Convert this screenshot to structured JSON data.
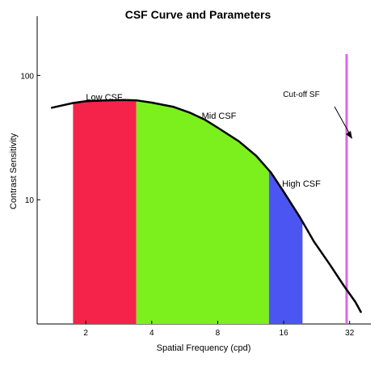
{
  "chart_data": {
    "type": "area",
    "title": "CSF Curve and Parameters",
    "xlabel": "Spatial Frequency (cpd)",
    "ylabel": "Contrast Sensitivity",
    "x_scale": "log",
    "y_scale": "log",
    "xlim": [
      1.2,
      40
    ],
    "ylim": [
      1,
      300
    ],
    "x_ticks": [
      {
        "value": 2,
        "label": "2"
      },
      {
        "value": 4,
        "label": "4"
      },
      {
        "value": 8,
        "label": "8"
      },
      {
        "value": 16,
        "label": "16"
      },
      {
        "value": 32,
        "label": "32"
      }
    ],
    "y_ticks": [
      {
        "value": 10,
        "label": "10"
      },
      {
        "value": 100,
        "label": "100"
      }
    ],
    "curve": {
      "x": [
        1.4,
        1.75,
        2.0,
        2.5,
        3.0,
        3.4,
        4.0,
        5.0,
        6.0,
        7.0,
        8.0,
        10.0,
        12.0,
        14.0,
        16.0,
        19.0,
        22.0,
        26.0,
        30.0,
        34.0,
        36.0
      ],
      "y": [
        55,
        60,
        62,
        63,
        63.5,
        63,
        60.5,
        56,
        50,
        44,
        38,
        29.5,
        22.5,
        16.5,
        11.6,
        7.2,
        4.6,
        3.0,
        2.05,
        1.5,
        1.25
      ]
    },
    "regions": [
      {
        "label": "Low CSF",
        "x_start": 1.75,
        "x_end": 3.4,
        "color": "#f5234a"
      },
      {
        "label": "Mid CSF",
        "x_start": 3.4,
        "x_end": 13.7,
        "color": "#7cf01c"
      },
      {
        "label": "High CSF",
        "x_start": 13.7,
        "x_end": 19.5,
        "color": "#4a55f2"
      }
    ],
    "cutoff": {
      "label": "Cut-off SF",
      "x": 31,
      "color": "#e066e8"
    },
    "grid": false
  }
}
